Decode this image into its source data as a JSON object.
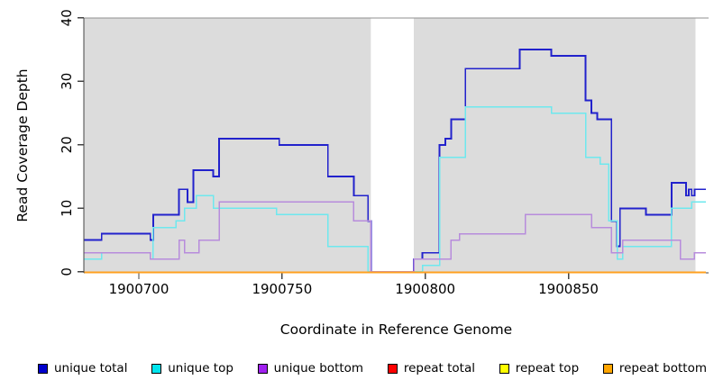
{
  "chart_data": {
    "type": "line",
    "subtype": "step-coverage",
    "title": "",
    "xlabel": "Coordinate in Reference Genome",
    "ylabel": "Read Coverage Depth",
    "x_ticks": [
      1900700,
      1900750,
      1900800,
      1900850
    ],
    "y_ticks": [
      0,
      10,
      20,
      30,
      40
    ],
    "xlim": [
      1900681,
      1900899
    ],
    "ylim": [
      0,
      40
    ],
    "grid": false,
    "plot_bg": "#dcdcdc",
    "no_data_region": {
      "start": 1900781,
      "end": 1900796,
      "color": "#ffffff"
    },
    "legend_position": "bottom",
    "series": [
      {
        "name": "unique total",
        "color": "#2222cc",
        "points": [
          [
            1900681,
            5
          ],
          [
            1900687,
            6
          ],
          [
            1900704,
            5
          ],
          [
            1900705,
            9
          ],
          [
            1900714,
            13
          ],
          [
            1900717,
            11
          ],
          [
            1900719,
            16
          ],
          [
            1900726,
            15
          ],
          [
            1900728,
            21
          ],
          [
            1900749,
            20
          ],
          [
            1900766,
            15
          ],
          [
            1900775,
            12
          ],
          [
            1900780,
            8
          ],
          [
            1900781,
            0
          ],
          [
            1900796,
            2
          ],
          [
            1900799,
            3
          ],
          [
            1900805,
            20
          ],
          [
            1900807,
            21
          ],
          [
            1900809,
            24
          ],
          [
            1900814,
            32
          ],
          [
            1900833,
            35
          ],
          [
            1900844,
            34
          ],
          [
            1900856,
            27
          ],
          [
            1900858,
            25
          ],
          [
            1900860,
            24
          ],
          [
            1900865,
            8
          ],
          [
            1900867,
            4
          ],
          [
            1900868,
            10
          ],
          [
            1900877,
            9
          ],
          [
            1900886,
            14
          ],
          [
            1900891,
            12
          ],
          [
            1900892,
            13
          ],
          [
            1900893,
            12
          ],
          [
            1900894,
            13
          ],
          [
            1900898,
            13
          ]
        ]
      },
      {
        "name": "unique top",
        "color": "#6ee8ee",
        "points": [
          [
            1900681,
            2
          ],
          [
            1900687,
            3
          ],
          [
            1900704,
            2
          ],
          [
            1900705,
            7
          ],
          [
            1900713,
            8
          ],
          [
            1900716,
            10
          ],
          [
            1900720,
            12
          ],
          [
            1900726,
            10
          ],
          [
            1900748,
            9
          ],
          [
            1900766,
            4
          ],
          [
            1900780,
            0
          ],
          [
            1900799,
            1
          ],
          [
            1900805,
            18
          ],
          [
            1900814,
            26
          ],
          [
            1900844,
            25
          ],
          [
            1900856,
            18
          ],
          [
            1900861,
            17
          ],
          [
            1900864,
            8
          ],
          [
            1900867,
            2
          ],
          [
            1900869,
            4
          ],
          [
            1900886,
            10
          ],
          [
            1900893,
            11
          ],
          [
            1900898,
            11
          ]
        ]
      },
      {
        "name": "unique bottom",
        "color": "#b78cdc",
        "points": [
          [
            1900681,
            3
          ],
          [
            1900704,
            2
          ],
          [
            1900714,
            5
          ],
          [
            1900716,
            3
          ],
          [
            1900721,
            5
          ],
          [
            1900728,
            11
          ],
          [
            1900775,
            8
          ],
          [
            1900781,
            0
          ],
          [
            1900796,
            2
          ],
          [
            1900809,
            5
          ],
          [
            1900812,
            6
          ],
          [
            1900835,
            9
          ],
          [
            1900858,
            7
          ],
          [
            1900865,
            3
          ],
          [
            1900869,
            5
          ],
          [
            1900889,
            2
          ],
          [
            1900894,
            3
          ],
          [
            1900898,
            3
          ]
        ]
      },
      {
        "name": "repeat total",
        "color": "#e00000",
        "points": [
          [
            1900681,
            0
          ],
          [
            1900898,
            0
          ]
        ]
      },
      {
        "name": "repeat top",
        "color": "#ffff00",
        "points": [
          [
            1900681,
            0
          ],
          [
            1900898,
            0
          ]
        ]
      },
      {
        "name": "repeat bottom",
        "color": "#ffa020",
        "points": [
          [
            1900681,
            0
          ],
          [
            1900898,
            0
          ]
        ]
      }
    ]
  },
  "legend": {
    "items": [
      {
        "label": "unique total",
        "color": "#0000cd"
      },
      {
        "label": "unique top",
        "color": "#00e5ee"
      },
      {
        "label": "unique bottom",
        "color": "#a020f0"
      },
      {
        "label": "repeat total",
        "color": "#ff0000"
      },
      {
        "label": "repeat top",
        "color": "#ffff00"
      },
      {
        "label": "repeat bottom",
        "color": "#ffa500"
      }
    ]
  },
  "axes": {
    "x_label": "Coordinate in Reference Genome",
    "y_label": "Read Coverage Depth",
    "x_tick_labels": [
      "1900700",
      "1900750",
      "1900800",
      "1900850"
    ],
    "y_tick_labels": [
      "0",
      "10",
      "20",
      "30",
      "40"
    ]
  }
}
